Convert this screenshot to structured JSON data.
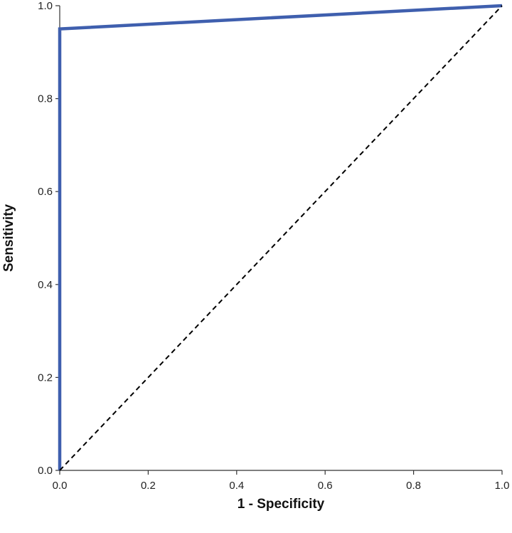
{
  "chart_data": {
    "type": "line",
    "title": "",
    "xlabel": "1 - Specificity",
    "ylabel": "Sensitivity",
    "xlim": [
      0,
      1
    ],
    "ylim": [
      0,
      1
    ],
    "x_ticks": [
      "0.0",
      "0.2",
      "0.4",
      "0.6",
      "0.8",
      "1.0"
    ],
    "y_ticks": [
      "0.0",
      "0.2",
      "0.4",
      "0.6",
      "0.8",
      "1.0"
    ],
    "grid": false,
    "legend": "none",
    "series": [
      {
        "color": "#3f5fae",
        "style": "solid",
        "points": [
          [
            0.0,
            0.0
          ],
          [
            0.0,
            0.95
          ],
          [
            1.0,
            1.0
          ]
        ]
      },
      {
        "color": "#000000",
        "style": "dashed",
        "points": [
          [
            0.0,
            0.0
          ],
          [
            1.0,
            1.0
          ]
        ]
      }
    ]
  }
}
